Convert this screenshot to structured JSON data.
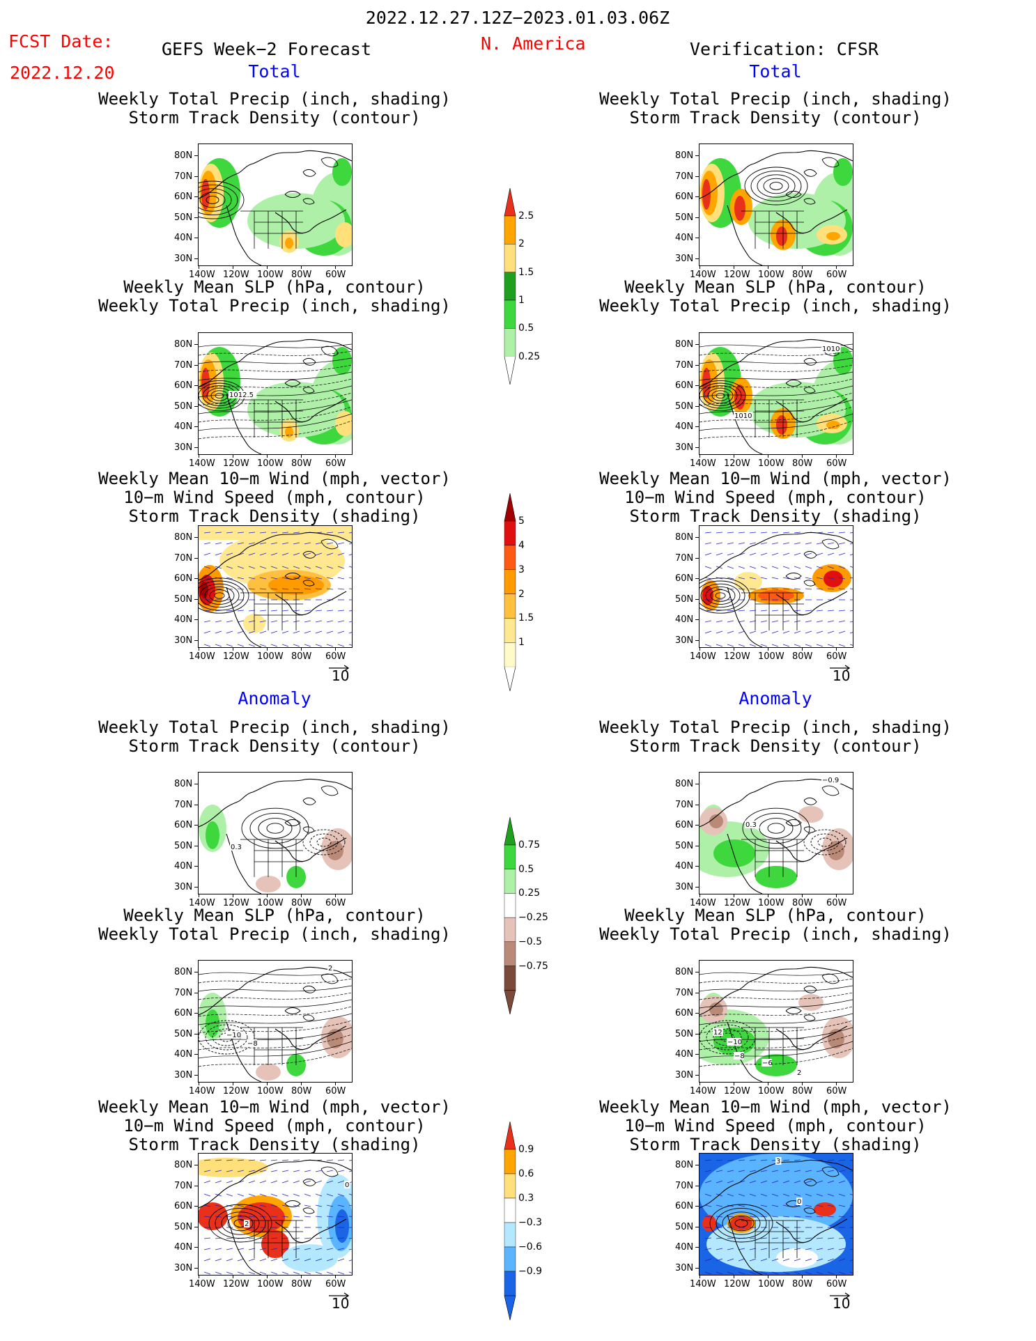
{
  "header": {
    "date_range": "2022.12.27.12Z−2023.01.03.06Z",
    "region": "N. America",
    "fcst_label": "FCST Date:",
    "fcst_date": "2022.12.20",
    "left_title": "GEFS Week−2 Forecast",
    "right_title": "Verification: CFSR"
  },
  "sections": {
    "total": "Total",
    "anomaly": "Anomaly"
  },
  "panel_titles": {
    "precip_track": [
      "Weekly Total Precip (inch, shading)",
      "Storm Track Density (contour)"
    ],
    "slp_precip": [
      "Weekly Mean SLP (hPa, contour)",
      "Weekly Total Precip (inch, shading)"
    ],
    "wind_track": [
      "Weekly Mean 10−m Wind (mph, vector)",
      "10−m Wind Speed (mph, contour)",
      "Storm Track Density (shading)"
    ]
  },
  "axes": {
    "lat": [
      "80N",
      "70N",
      "60N",
      "50N",
      "40N",
      "30N"
    ],
    "lon": [
      "140W",
      "120W",
      "100W",
      "80W",
      "60W"
    ]
  },
  "vector_ref": "10",
  "colorbars": {
    "precip_total": {
      "labels": [
        "2.5",
        "2",
        "1.5",
        "1",
        "0.5",
        "0.25"
      ],
      "colors": [
        "#e8301a",
        "#ffa500",
        "#ffe07a",
        "#1ea01e",
        "#3ed83e",
        "#aef0a8"
      ]
    },
    "track_total": {
      "labels": [
        "5",
        "4",
        "3",
        "2",
        "1.5",
        "1"
      ],
      "colors": [
        "#a00000",
        "#e01010",
        "#ff5a14",
        "#ff9a00",
        "#ffc040",
        "#ffe890",
        "#fffbc8"
      ]
    },
    "precip_anom": {
      "labels": [
        "0.75",
        "0.5",
        "0.25",
        "−0.25",
        "−0.5",
        "−0.75"
      ],
      "colors": [
        "#1ea01e",
        "#3ed83e",
        "#aef0a8",
        "#ffffff",
        "#e6c3b8",
        "#b98a78",
        "#7a4a3a"
      ]
    },
    "track_anom": {
      "labels": [
        "0.9",
        "0.6",
        "0.3",
        "−0.3",
        "−0.6",
        "−0.9"
      ],
      "colors": [
        "#e8301a",
        "#ffa500",
        "#ffe07a",
        "#ffffff",
        "#b4e8ff",
        "#5ab4ff",
        "#1a64e6"
      ]
    }
  },
  "map_labels": {
    "l2": "1012.5",
    "r2": "1010",
    "r2b": "1010",
    "l4": "0.3",
    "r4": "0.3",
    "r4b": "−0.9",
    "l5a": "−10",
    "l5b": "−8",
    "l5c": "2",
    "r5a": "12",
    "r5b": "−10",
    "r5c": "−8",
    "r5d": "−6",
    "r5e": "2",
    "l6": "2",
    "l6b": "0",
    "r6": "3",
    "r6b": "0"
  }
}
